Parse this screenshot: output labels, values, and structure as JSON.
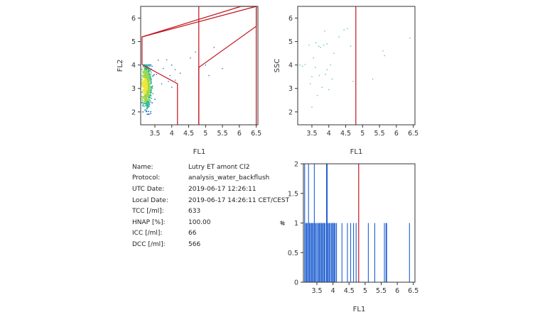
{
  "colors": {
    "gate": "#c0141c",
    "histogram": "#1f5fd1",
    "frame": "#333333",
    "ssc_points": "#5fc8a0"
  },
  "info": {
    "rows": [
      {
        "key": "Name:",
        "value": "Lutry ET amont Cl2"
      },
      {
        "key": "Protocol:",
        "value": "analysis_water_backflush"
      },
      {
        "key": "UTC Date:",
        "value": "2019-06-17 12:26:11"
      },
      {
        "key": "Local Date:",
        "value": "2019-06-17 14:26:11 CET/CEST"
      },
      {
        "key": "TCC [/ml]:",
        "value": "633"
      },
      {
        "key": "HNAP [%]:",
        "value": "100.00"
      },
      {
        "key": "ICC [/ml]:",
        "value": "66"
      },
      {
        "key": "DCC [/ml]:",
        "value": "566"
      }
    ]
  },
  "chart_data": [
    {
      "type": "scatter",
      "id": "fl1_fl2",
      "xlabel": "FL1",
      "ylabel": "FL2",
      "xlim": [
        3.08,
        6.55
      ],
      "ylim": [
        1.45,
        6.5
      ],
      "xticks": [
        "3.5",
        "4",
        "4.5",
        "5",
        "5.5",
        "6",
        "6.5"
      ],
      "yticks": [
        "2",
        "3",
        "4",
        "5",
        "6"
      ],
      "grid": false,
      "density_core": {
        "x_range": [
          3.08,
          3.5
        ],
        "y_range": [
          1.9,
          4.0
        ],
        "center": [
          3.2,
          3.1
        ],
        "colors": [
          "#1a2a8c",
          "#2b6fd0",
          "#2fb59b",
          "#9bd84a",
          "#f0e63a"
        ]
      },
      "points": [
        [
          3.85,
          4.22
        ],
        [
          4.0,
          4.0
        ],
        [
          3.95,
          3.55
        ],
        [
          4.1,
          3.8
        ],
        [
          4.55,
          4.3
        ],
        [
          4.7,
          4.55
        ],
        [
          5.0,
          4.0
        ],
        [
          5.1,
          3.55
        ],
        [
          5.5,
          3.85
        ],
        [
          3.7,
          3.2
        ],
        [
          4.0,
          3.05
        ],
        [
          3.6,
          4.2
        ],
        [
          4.25,
          3.65
        ],
        [
          5.25,
          4.75
        ],
        [
          3.75,
          3.85
        ],
        [
          3.9,
          3.3
        ],
        [
          4.1,
          3.35
        ],
        [
          3.55,
          3.6
        ]
      ],
      "gates": [
        {
          "polygon": [
            [
              3.12,
              4.02
            ],
            [
              3.12,
              5.2
            ],
            [
              6.5,
              6.5
            ],
            [
              6.5,
              6.5
            ]
          ]
        },
        {
          "polygon": [
            [
              3.12,
              5.2
            ],
            [
              6.05,
              6.5
            ],
            [
              6.5,
              6.5
            ],
            [
              6.5,
              5.65
            ],
            [
              4.8,
              3.9
            ],
            [
              4.8,
              1.45
            ],
            [
              4.8,
              1.45
            ]
          ]
        },
        {
          "polygon": [
            [
              3.12,
              4.02
            ],
            [
              4.17,
              3.2
            ],
            [
              4.17,
              1.45
            ]
          ]
        }
      ],
      "vlines": [
        4.8,
        6.5
      ]
    },
    {
      "type": "scatter",
      "id": "fl1_ssc",
      "xlabel": "FL1",
      "ylabel": "SSC",
      "xlim": [
        3.08,
        6.55
      ],
      "ylim": [
        1.45,
        6.5
      ],
      "xticks": [
        "3.5",
        "4",
        "4.5",
        "5",
        "5.5",
        "6",
        "6.5"
      ],
      "yticks": [
        "2",
        "3",
        "4",
        "5",
        "6"
      ],
      "grid": false,
      "points": [
        [
          3.15,
          4.0
        ],
        [
          3.22,
          3.95
        ],
        [
          3.3,
          4.02
        ],
        [
          3.42,
          4.85
        ],
        [
          3.45,
          3.2
        ],
        [
          3.5,
          3.5
        ],
        [
          3.55,
          4.3
        ],
        [
          3.6,
          3.9
        ],
        [
          3.62,
          4.95
        ],
        [
          3.66,
          2.7
        ],
        [
          3.7,
          4.8
        ],
        [
          3.72,
          3.55
        ],
        [
          3.75,
          4.75
        ],
        [
          3.8,
          3.05
        ],
        [
          3.85,
          4.85
        ],
        [
          3.88,
          5.45
        ],
        [
          3.9,
          3.6
        ],
        [
          3.95,
          4.9
        ],
        [
          4.0,
          2.95
        ],
        [
          4.05,
          4.0
        ],
        [
          4.1,
          3.4
        ],
        [
          4.3,
          5.2
        ],
        [
          4.45,
          5.5
        ],
        [
          4.55,
          5.55
        ],
        [
          4.65,
          4.8
        ],
        [
          4.72,
          3.3
        ],
        [
          5.3,
          3.4
        ],
        [
          5.6,
          4.6
        ],
        [
          5.65,
          4.4
        ],
        [
          6.4,
          5.15
        ],
        [
          3.5,
          2.2
        ],
        [
          3.95,
          3.8
        ],
        [
          4.15,
          4.5
        ]
      ],
      "vlines": [
        4.8
      ]
    },
    {
      "type": "bar",
      "id": "fl1_histogram",
      "xlabel": "FL1",
      "ylabel": "#",
      "xlim": [
        3.08,
        6.55
      ],
      "ylim": [
        0,
        2
      ],
      "xticks": [
        "3.5",
        "4",
        "4.5",
        "5",
        "5.5",
        "6",
        "6.5"
      ],
      "yticks": [
        "0",
        "0.5",
        "1",
        "1.5",
        "2"
      ],
      "grid": false,
      "bars": [
        {
          "x": 3.12,
          "count": 2
        },
        {
          "x": 3.15,
          "count": 1
        },
        {
          "x": 3.18,
          "count": 1
        },
        {
          "x": 3.21,
          "count": 1
        },
        {
          "x": 3.24,
          "count": 2
        },
        {
          "x": 3.27,
          "count": 1
        },
        {
          "x": 3.3,
          "count": 1
        },
        {
          "x": 3.33,
          "count": 1
        },
        {
          "x": 3.36,
          "count": 1
        },
        {
          "x": 3.39,
          "count": 1
        },
        {
          "x": 3.42,
          "count": 2
        },
        {
          "x": 3.45,
          "count": 1
        },
        {
          "x": 3.48,
          "count": 1
        },
        {
          "x": 3.52,
          "count": 1
        },
        {
          "x": 3.55,
          "count": 1
        },
        {
          "x": 3.58,
          "count": 1
        },
        {
          "x": 3.61,
          "count": 1
        },
        {
          "x": 3.64,
          "count": 1
        },
        {
          "x": 3.67,
          "count": 1
        },
        {
          "x": 3.7,
          "count": 1
        },
        {
          "x": 3.73,
          "count": 1
        },
        {
          "x": 3.76,
          "count": 1
        },
        {
          "x": 3.8,
          "count": 2
        },
        {
          "x": 3.82,
          "count": 2
        },
        {
          "x": 3.85,
          "count": 1
        },
        {
          "x": 3.88,
          "count": 1
        },
        {
          "x": 3.91,
          "count": 1
        },
        {
          "x": 3.95,
          "count": 1
        },
        {
          "x": 3.98,
          "count": 1
        },
        {
          "x": 4.01,
          "count": 1
        },
        {
          "x": 4.04,
          "count": 1
        },
        {
          "x": 4.07,
          "count": 1
        },
        {
          "x": 4.11,
          "count": 1
        },
        {
          "x": 4.28,
          "count": 1
        },
        {
          "x": 4.45,
          "count": 1
        },
        {
          "x": 4.55,
          "count": 1
        },
        {
          "x": 4.64,
          "count": 1
        },
        {
          "x": 4.72,
          "count": 1
        },
        {
          "x": 5.1,
          "count": 1
        },
        {
          "x": 5.3,
          "count": 1
        },
        {
          "x": 5.6,
          "count": 1
        },
        {
          "x": 5.65,
          "count": 1
        },
        {
          "x": 5.67,
          "count": 1
        },
        {
          "x": 6.38,
          "count": 1
        }
      ],
      "vlines": [
        4.8
      ]
    }
  ]
}
